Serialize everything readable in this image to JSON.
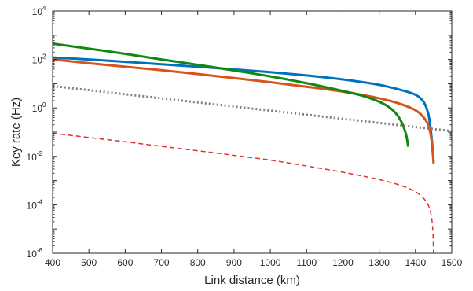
{
  "chart_data": {
    "type": "line",
    "title": "",
    "xlabel": "Link distance (km)",
    "ylabel": "Key rate (Hz)",
    "xlim": [
      400,
      1500
    ],
    "ylim": [
      1e-06,
      10000
    ],
    "yscale": "log",
    "grid": false,
    "legend": "none",
    "x_ticks": [
      "400",
      "500",
      "600",
      "700",
      "800",
      "900",
      "1000",
      "1100",
      "1200",
      "1300",
      "1400",
      "1500"
    ],
    "y_ticks": [
      {
        "base": "10",
        "exp": "-6"
      },
      {
        "base": "10",
        "exp": "-4"
      },
      {
        "base": "10",
        "exp": "-2"
      },
      {
        "base": "10",
        "exp": "0"
      },
      {
        "base": "10",
        "exp": "2"
      },
      {
        "base": "10",
        "exp": "4"
      }
    ],
    "series": [
      {
        "color": "#0072BD",
        "dash": "solid",
        "x": [
          400,
          500,
          600,
          700,
          800,
          900,
          1000,
          1100,
          1200,
          1300,
          1350,
          1400,
          1420,
          1435,
          1445,
          1450
        ],
        "y": [
          120,
          100,
          80,
          63,
          50,
          39,
          30,
          22,
          15,
          9,
          6,
          3.5,
          2,
          0.6,
          0.05,
          0.006
        ]
      },
      {
        "color": "#D95319",
        "dash": "solid",
        "x": [
          400,
          500,
          600,
          700,
          800,
          900,
          1000,
          1100,
          1200,
          1300,
          1350,
          1400,
          1420,
          1435,
          1445,
          1450
        ],
        "y": [
          100,
          70,
          50,
          36,
          25,
          17,
          11.5,
          7.5,
          4.7,
          2.5,
          1.6,
          0.8,
          0.45,
          0.2,
          0.04,
          0.005
        ]
      },
      {
        "color": "#118811",
        "dash": "solid",
        "x": [
          400,
          500,
          600,
          700,
          800,
          900,
          1000,
          1100,
          1200,
          1250,
          1300,
          1330,
          1350,
          1365,
          1375,
          1380
        ],
        "y": [
          450,
          280,
          170,
          100,
          60,
          35,
          20,
          10.5,
          5,
          3.3,
          1.8,
          1.0,
          0.5,
          0.2,
          0.07,
          0.025
        ]
      },
      {
        "color": "#808080",
        "dash": "dotted",
        "x": [
          400,
          1500
        ],
        "y": [
          8,
          0.11
        ]
      },
      {
        "color": "#E03030",
        "dash": "dashed",
        "x": [
          400,
          500,
          600,
          700,
          800,
          900,
          1000,
          1100,
          1200,
          1300,
          1350,
          1400,
          1420,
          1435,
          1443,
          1448,
          1450
        ],
        "y": [
          0.09,
          0.06,
          0.04,
          0.026,
          0.017,
          0.011,
          0.007,
          0.004,
          0.0022,
          0.0011,
          0.0007,
          0.00035,
          0.0002,
          0.0001,
          4e-05,
          8e-06,
          1e-06
        ]
      }
    ]
  }
}
